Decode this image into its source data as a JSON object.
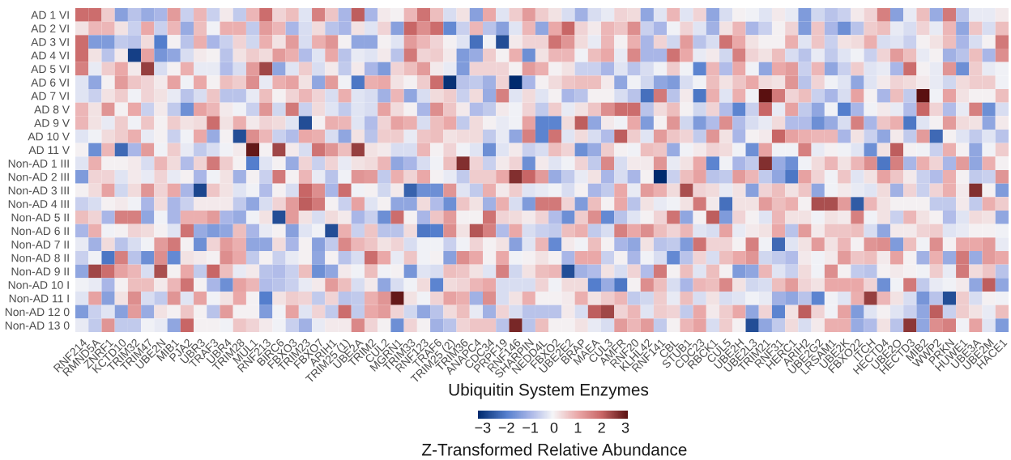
{
  "chart_data": {
    "type": "heatmap",
    "xlabel": "Ubiquitin System Enzymes",
    "clabel": "Z-Transformed Relative Abundance",
    "categories": [
      "RNF214",
      "RMND5A",
      "ZNRF1",
      "KCTD10",
      "TRIM32",
      "TRIM47",
      "UBE2N",
      "MIB1",
      "PJA2",
      "UBR3",
      "TRAF3",
      "UBR4",
      "TRIM28",
      "MUL1",
      "RNF213",
      "BIRC6",
      "FBXO3",
      "TRIM23",
      "FBXO7",
      "ARIH1",
      "TRIM25 (1)",
      "UBE2A",
      "TRIM2",
      "CUL2",
      "MGRN1",
      "TRIM33",
      "RNF123",
      "TRAF6",
      "TRIM25 (2)",
      "TRIM36",
      "ANAPC4",
      "CDC34",
      "PRPF19",
      "RNF146",
      "SHARPIN",
      "NEDD4L",
      "FBXO2",
      "UBE2E2",
      "BRAP",
      "MAEA",
      "CUL3",
      "AMFR",
      "RNF20",
      "KLHL42",
      "RNF141",
      "CBL",
      "STUB1",
      "CDC23",
      "RBCK1",
      "CUL5",
      "UBE2H",
      "UBE2L3",
      "TRIM21",
      "RNF31",
      "HERC1",
      "ARIH2",
      "UBE2G2",
      "LRSAM1",
      "UBE2K",
      "FBXO22",
      "ITCH",
      "HECTD4",
      "UBE2O",
      "HECTD3",
      "MIB2",
      "WWP2",
      "PRKN",
      "HUWE1",
      "UBE3A",
      "UBE2M",
      "HACE1"
    ],
    "y_categories": [
      "AD 1 VI",
      "AD 2 VI",
      "AD 3 VI",
      "AD 4 VI",
      "AD 5 VI",
      "AD 6 VI",
      "AD 7 VI",
      "AD 8 V",
      "AD 9 V",
      "AD 10 V",
      "AD 11 V",
      "Non-AD 1 III",
      "Non-AD 2 III",
      "Non-AD 3 III",
      "Non-AD 4 III",
      "Non-AD 5 II",
      "Non-AD 6 II",
      "Non-AD 7 II",
      "Non-AD 8 II",
      "Non-AD 9 II",
      "Non-AD 10 I",
      "Non-AD 11 I",
      "Non-AD 12 0",
      "Non-AD 13 0"
    ],
    "cells": [
      [
        1.9,
        1.9,
        0.5,
        -1.4,
        -0.8,
        -1.2,
        -1.0,
        1.2,
        -0.6,
        0.8,
        -0.6,
        0.1,
        -0.7,
        0.8,
        1.9,
        0.4,
        0.7,
        -0.3,
        1.6,
        0.6,
        -1.0,
        2.1,
        -1.0,
        0.1,
        0,
        0.8,
        1.8,
        0.7,
        -0.4,
        0.2,
        -1.4,
        1.0,
        -0.3,
        0.5,
        1.2,
        0.5,
        0.2,
        -0.4,
        -1.1,
        -0.4,
        -0.2,
        0.4,
        0.3,
        -1.3,
        -0.3,
        0.8,
        -0.3,
        0.4,
        -1.3,
        -0.4,
        0,
        -0.1,
        -0.3,
        0.1,
        -0.2,
        -1.5,
        -0.5,
        -0.8,
        -0.6,
        0.1,
        0.4,
        1.6,
        -1.4,
        -0.2,
        0.7,
        -1.2,
        1.7,
        -0.8,
        -0.2,
        -0.2,
        0.1
      ],
      [
        0.2,
        0.8,
        0.8,
        0.2,
        -0.6,
        1.0,
        -0.6,
        0.8,
        -1.2,
        0.7,
        -0.1,
        0.9,
        0.9,
        -0.7,
        1.2,
        0.8,
        -1.0,
        -0.4,
        0.3,
        -0.8,
        -1.0,
        0.2,
        -0.3,
        0.4,
        -1.4,
        2.0,
        1.4,
        1.9,
        -1.8,
        -0.6,
        0.8,
        -0.8,
        -1.4,
        -0.3,
        0.8,
        -1.3,
        1.0,
        2.0,
        0.4,
        0.1,
        0.8,
        0.6,
        1.4,
        -0.6,
        -1.0,
        -0.1,
        0.4,
        -0.3,
        -1.1,
        0.2,
        0.8,
        -1.0,
        -0.6,
        0,
        0.4,
        -1.5,
        0.6,
        -1.0,
        -1.7,
        -0.8,
        0.5,
        0.7,
        -0.2,
        -0.4,
        0.4,
        -0.2,
        0.8,
        -1.3,
        0.6,
        -0.4,
        0.7
      ],
      [
        1.9,
        -1.5,
        -1.5,
        -0.7,
        -0.8,
        0.3,
        -2.0,
        0,
        -0.8,
        0.9,
        -1.0,
        -0.6,
        0.4,
        -0.5,
        0.9,
        0.2,
        1.2,
        -0.4,
        0.9,
        1.3,
        0,
        -1.3,
        -1.3,
        0,
        -0.3,
        1.2,
        0.8,
        0.4,
        0,
        -0.3,
        -2.2,
        -0.1,
        -2.7,
        0.1,
        0.4,
        0.4,
        1.8,
        1.3,
        0.3,
        -0.2,
        0.8,
        0,
        0.9,
        -1.0,
        0.4,
        -0.5,
        1.2,
        -0.8,
        -0.4,
        1.8,
        1.0,
        0.2,
        0,
        0,
        0.9,
        -0.3,
        0.6,
        -0.6,
        0.2,
        0.3,
        0.9,
        -0.4,
        -0.3,
        -0.6,
        0,
        0.2,
        0.7,
        -1.0,
        -0.4,
        0,
        1.7
      ],
      [
        1.9,
        0.2,
        -0.8,
        0.1,
        -2.9,
        1.1,
        -1.6,
        -1.3,
        -0.4,
        0.1,
        0,
        -0.8,
        0.2,
        0.5,
        0.3,
        1.2,
        0.9,
        -0.9,
        -0.3,
        1.0,
        -0.8,
        -0.2,
        -0.3,
        0.1,
        -0.8,
        1.7,
        0.4,
        0.5,
        0.1,
        -1.5,
        -1.2,
        0.5,
        0,
        0.9,
        -1.7,
        0.2,
        0.8,
        0.8,
        -0.1,
        0.7,
        1.0,
        -0.2,
        1.5,
        -1.0,
        -1.0,
        1.8,
        1.0,
        -0.2,
        0.1,
        -0.5,
        1.6,
        0.4,
        0.2,
        0.7,
        -0.4,
        -0.8,
        -0.2,
        -0.7,
        -0.3,
        -0.1,
        -0.6,
        0.4,
        1.2,
        0.7,
        -0.2,
        0,
        -1.1,
        -0.8,
        0.7,
        -1.0,
        1.4
      ],
      [
        1.6,
        -0.2,
        0.5,
        1.0,
        0.1,
        2.5,
        -0.4,
        0,
        0.9,
        -0.2,
        -0.2,
        -0.9,
        -0.4,
        1.2,
        2.4,
        -1.3,
        -0.3,
        0.5,
        -0.4,
        0.1,
        -0.7,
        0.1,
        -1.0,
        -1.5,
        0.4,
        0.7,
        1.2,
        0.1,
        -0.2,
        -1.5,
        0.4,
        0.4,
        0.4,
        0,
        1.2,
        0.9,
        0,
        0.2,
        -0.6,
        -0.6,
        -1.0,
        -0.3,
        -0.8,
        -0.4,
        -0.1,
        0.5,
        -0.1,
        -1.9,
        0.8,
        -0.9,
        1.0,
        -0.1,
        -1.3,
        1.0,
        1.2,
        -0.6,
        0.8,
        -1.3,
        -0.6,
        0.5,
        -0.3,
        -0.2,
        -1.0,
        1.9,
        0,
        -0.2,
        1.3,
        -1.7,
        0.5,
        -0.2,
        -0.1
      ],
      [
        -0.3,
        -1.3,
        0,
        1.2,
        0.6,
        0.4,
        0.1,
        1.1,
        -0.1,
        1.0,
        0,
        0.7,
        0.5,
        1.4,
        -0.2,
        0.9,
        1.1,
        0.2,
        -1.3,
        1.2,
        -0.1,
        -2.1,
        0.9,
        1.0,
        0.2,
        0,
        0.5,
        1.9,
        -3.1,
        -0.8,
        -0.7,
        -1.1,
        0.4,
        -3.2,
        -1.0,
        0,
        0.3,
        0.6,
        0.7,
        0.7,
        0.1,
        -1.3,
        -0.1,
        -0.5,
        -1.3,
        -1.5,
        -0.4,
        -0.1,
        0.7,
        0.2,
        0.6,
        1.0,
        0.3,
        0.2,
        1.3,
        -0.8,
        0.4,
        -0.1,
        -0.3,
        -1.3,
        -0.3,
        0.1,
        0.4,
        0.3,
        0.1,
        -0.2,
        -0.5,
        0.3,
        0.5,
        0.5,
        -0.1
      ],
      [
        -0.3,
        -0.6,
        0.2,
        0.5,
        -0.1,
        0.4,
        0.2,
        -0.2,
        -0.8,
        -0.4,
        0.6,
        -0.8,
        -0.8,
        -0.2,
        0.7,
        0,
        0.4,
        0.8,
        0.4,
        -0.4,
        0.9,
        -0.3,
        -0.4,
        -1.1,
        0.8,
        -1.3,
        -0.4,
        0.3,
        0.5,
        -0.6,
        0.3,
        -1.2,
        1.6,
        -0.3,
        0.3,
        -0.3,
        0,
        -1.0,
        -0.8,
        0,
        0,
        -0.4,
        -0.8,
        -2.2,
        1.7,
        -0.8,
        0.1,
        -2.1,
        0.9,
        -0.3,
        0.9,
        -0.1,
        3.1,
        1.7,
        0.4,
        0.7,
        -0.6,
        -1.0,
        -0.4,
        1.1,
        0,
        -1.0,
        0.7,
        -0.7,
        3.1,
        -0.1,
        1.1,
        0.2,
        0,
        0,
        0.7
      ],
      [
        0.8,
        0.2,
        1.3,
        0,
        1.0,
        -0.6,
        0.1,
        -0.7,
        -1.7,
        1.1,
        0.8,
        0.1,
        -0.1,
        -0.6,
        1.3,
        -0.5,
        1.7,
        -0.6,
        0.3,
        -0.3,
        -0.7,
        -0.3,
        -0.4,
        1.1,
        0.3,
        0,
        -1.0,
        1.4,
        0.6,
        0.1,
        -0.9,
        -0.7,
        0.1,
        -0.1,
        0.4,
        -0.7,
        0.5,
        -0.2,
        0.2,
        0.6,
        1.4,
        1.9,
        1.9,
        -0.8,
        0.3,
        0.7,
        0,
        -0.5,
        0.4,
        -0.9,
        -1.9,
        -0.6,
        2.0,
        -0.2,
        1.1,
        -0.7,
        -1.3,
        -0.1,
        -2.0,
        -1.0,
        -0.1,
        0.1,
        -0.2,
        -0.9,
        2.0,
        0.4,
        -0.9,
        -0.2,
        1.6,
        -1.7,
        -0.4
      ],
      [
        0.8,
        0.2,
        -0.2,
        0.5,
        -0.1,
        0.6,
        0,
        0.5,
        0.2,
        0.3,
        1.9,
        0.2,
        0.9,
        0.1,
        0.4,
        0.3,
        -0.3,
        -2.7,
        0,
        0.9,
        0.8,
        -0.3,
        -0.9,
        0.4,
        1.1,
        0.9,
        -0.4,
        0.7,
        1.0,
        -0.7,
        0.3,
        0,
        -0.2,
        -0.1,
        1.1,
        -1.9,
        -1.9,
        0.3,
        2.1,
        -1.3,
        0.1,
        -0.1,
        1.0,
        -1.5,
        0,
        1.3,
        -0.5,
        -1.5,
        -0.9,
        1.4,
        -0.9,
        -0.4,
        -0.2,
        0.3,
        -0.9,
        -0.9,
        -1.7,
        -1.2,
        -0.4,
        1.6,
        -1.0,
        0.6,
        0.9,
        -2.1,
        -0.3,
        0,
        1.2,
        0.3,
        0.2,
        -1.3,
        0.1
      ],
      [
        -0.3,
        -0.1,
        0.3,
        0.5,
        0.9,
        -0.2,
        0,
        -0.6,
        -0.1,
        1.0,
        -1.2,
        0,
        -2.7,
        1.4,
        0.8,
        -0.6,
        -0.9,
        1.0,
        0.9,
        -0.4,
        -1.3,
        0.2,
        -0.8,
        0.5,
        0.5,
        -0.2,
        0.6,
        0.7,
        0.2,
        0.3,
        0.3,
        -0.7,
        -0.2,
        -1.3,
        1.6,
        -1.9,
        1.8,
        -0.3,
        0.3,
        -0.4,
        -0.9,
        2.1,
        0.5,
        -0.3,
        1.2,
        0.6,
        0.4,
        -0.7,
        1.3,
        0.2,
        -1.0,
        0,
        0.1,
        2.0,
        1.1,
        0.9,
        0.8,
        0.8,
        -1.0,
        0.2,
        -0.6,
        -1.3,
        0.1,
        -0.7,
        1.2,
        -2.3,
        0,
        -0.3,
        -0.7,
        -0.3,
        -0.8
      ],
      [
        0,
        -1.7,
        0.8,
        -2.3,
        -1.0,
        1.2,
        -0.1,
        0.5,
        -0.2,
        -0.7,
        -0.4,
        -0.1,
        0.1,
        3.0,
        0,
        2.4,
        0.1,
        -0.4,
        1.8,
        1.3,
        0.7,
        2.5,
        0.2,
        0.1,
        -0.4,
        -0.4,
        0.8,
        0,
        0.4,
        -0.1,
        -0.3,
        -1.7,
        -0.3,
        0.1,
        -0.6,
        -0.4,
        0.7,
        0.4,
        -1.7,
        -1.2,
        0.5,
        0,
        -0.1,
        0.7,
        0.6,
        -1.2,
        -0.1,
        0.1,
        0.4,
        0.3,
        -0.1,
        -1.7,
        1.1,
        -0.1,
        -0.1,
        1.6,
        -0.2,
        0,
        -0.1,
        -0.3,
        -1.7,
        0.2,
        2.1,
        0,
        -0.1,
        -0.6,
        0.9,
        0,
        -1.3,
        -0.1,
        0.5
      ],
      [
        -0.3,
        0.9,
        0,
        0,
        0.1,
        -0.4,
        0.8,
        0.3,
        -0.9,
        0.4,
        1.7,
        0.5,
        0,
        -2.0,
        -0.3,
        0,
        -1.2,
        0.4,
        -0.6,
        0.4,
        -0.2,
        0.2,
        0.3,
        0.8,
        -1.3,
        -1.0,
        -0.4,
        -0.1,
        0.7,
        2.7,
        0.4,
        -0.6,
        0.1,
        0.4,
        -1.7,
        0.1,
        -0.3,
        -0.1,
        0.4,
        -0.7,
        1.5,
        -0.4,
        0.1,
        0.1,
        1.3,
        -0.2,
        0.2,
        1.0,
        -1.9,
        -0.1,
        -1.0,
        -0.7,
        2.7,
        -1.2,
        -1.7,
        -0.1,
        0.3,
        0.8,
        0.2,
        0.8,
        1.4,
        -2.1,
        1.6,
        -1.0,
        0.9,
        0.4,
        -1.0,
        1.2,
        -1.3,
        0.9,
        0
      ],
      [
        -1.5,
        0.4,
        0.4,
        -0.3,
        0.1,
        -0.2,
        0.4,
        -0.2,
        0,
        -1.0,
        -0.1,
        0.2,
        -1.1,
        0,
        -0.6,
        1.7,
        0,
        0.8,
        -0.2,
        -0.8,
        -0.1,
        1.3,
        1.2,
        -0.7,
        0.9,
        0.4,
        1.0,
        0,
        -0.2,
        -0.7,
        0.5,
        0.5,
        1.0,
        2.7,
        2.0,
        1.2,
        -1.2,
        -0.7,
        -0.2,
        0.2,
        -1.0,
        -0.4,
        -1.0,
        0,
        -3.2,
        -0.6,
        0.7,
        1.1,
        -0.8,
        -0.7,
        1.2,
        0.8,
        -0.7,
        -1.3,
        -2.1,
        1.1,
        0.4,
        -0.1,
        0.6,
        -0.3,
        0.2,
        1.1,
        0.6,
        0.1,
        -0.6,
        -0.9,
        0.9,
        0,
        -0.7,
        -0.6,
        1.3
      ],
      [
        0,
        0.3,
        1.1,
        -0.5,
        0.3,
        1.3,
        0.4,
        1.0,
        -1.0,
        -2.8,
        0.6,
        0.2,
        -0.3,
        -0.1,
        -0.9,
        0,
        -0.4,
        2.0,
        1.4,
        -1.0,
        1.9,
        -0.1,
        0,
        -0.5,
        0.1,
        -2.4,
        -1.7,
        -1.7,
        1.3,
        -0.3,
        -0.7,
        0.9,
        0.1,
        0.5,
        -0.3,
        -0.2,
        -0.1,
        -0.4,
        0,
        -1.0,
        -0.7,
        1.0,
        -0.2,
        1.2,
        0.9,
        0.3,
        2.3,
        0.4,
        0.3,
        -0.2,
        0.2,
        -1.4,
        0.4,
        0.7,
        0.2,
        0.6,
        -1.3,
        -0.1,
        0.1,
        -0.2,
        -0.3,
        0.3,
        -1.1,
        0.4,
        -0.6,
        0.4,
        0.9,
        0.1,
        2.7,
        0,
        -1.5
      ],
      [
        -0.6,
        -0.4,
        0,
        0.1,
        -0.1,
        -1.0,
        0.3,
        -1.0,
        -0.6,
        0.1,
        0.1,
        0.1,
        -0.7,
        -1.3,
        -0.4,
        0.4,
        1.2,
        2.1,
        1.7,
        0,
        -0.6,
        1.1,
        -0.3,
        0,
        -1.3,
        -1.3,
        0.3,
        -0.9,
        -1.7,
        0.6,
        0.2,
        -1.1,
        0.9,
        -0.4,
        -1.5,
        1.7,
        1.7,
        0.4,
        -1.5,
        0.7,
        0,
        1.0,
        -0.8,
        0.2,
        -0.2,
        -0.1,
        0.2,
        1.7,
        0.1,
        -2.2,
        0.2,
        0.2,
        1.2,
        0.7,
        0.9,
        0,
        2.3,
        2.3,
        1.2,
        -2.5,
        0.8,
        0.2,
        0,
        0,
        0,
        -0.7,
        -0.7,
        0.1,
        -0.7,
        0.9,
        0.5
      ],
      [
        0.7,
        0.4,
        -1.0,
        1.6,
        1.6,
        -1.3,
        -0.1,
        -1.0,
        0.9,
        0.9,
        1.2,
        -1.0,
        -1.2,
        -0.1,
        0.2,
        -2.7,
        1.2,
        0.2,
        -0.4,
        0.3,
        0.1,
        -1.0,
        -0.6,
        -1.7,
        1.9,
        0,
        -1.0,
        0.6,
        1.2,
        0,
        0,
        1.8,
        0.4,
        0.3,
        0.1,
        0.4,
        -0.9,
        -1.7,
        0.5,
        1.4,
        -1.8,
        -0.8,
        -0.3,
        0,
        0.4,
        1.8,
        -1.3,
        0,
        2.1,
        -1.5,
        0.4,
        0,
        -0.3,
        0.8,
        0.2,
        0.2,
        -0.1,
        0.2,
        0.1,
        1.6,
        -0.1,
        0.2,
        -0.6,
        0.8,
        0.2,
        0,
        -0.9,
        -0.3,
        0.3,
        0.2,
        -1.3
      ],
      [
        -1.0,
        0.9,
        -0.1,
        0,
        0.4,
        0.3,
        0,
        -0.3,
        1.8,
        -1.2,
        -1.5,
        -1.3,
        0.7,
        -1.0,
        -0.2,
        0,
        -1.4,
        -0.3,
        -0.1,
        -2.7,
        0.9,
        -0.6,
        0.6,
        -0.8,
        -0.8,
        0.3,
        -2.1,
        -2.0,
        1.4,
        0.2,
        2.2,
        1.6,
        -0.9,
        1.0,
        -0.4,
        -0.6,
        -0.7,
        0.7,
        0.9,
        -0.7,
        -0.4,
        1.6,
        1.0,
        1.4,
        0.7,
        0.4,
        0.8,
        -0.3,
        -0.4,
        1.1,
        -0.2,
        0.1,
        0.2,
        1.0,
        -0.8,
        1.2,
        0.1,
        0.6,
        0.6,
        0.7,
        -0.4,
        -1.3,
        0.1,
        0.1,
        0.4,
        0.5,
        -0.3,
        -0.2,
        0,
        0,
        -0.1
      ],
      [
        -0.2,
        -1.1,
        0.3,
        -0.8,
        -0.4,
        -0.1,
        1.2,
        1.7,
        0,
        -1.7,
        0.4,
        1.2,
        0.9,
        -1.3,
        -1.3,
        0.3,
        -1.0,
        0,
        -1.4,
        -0.7,
        1.5,
        0.8,
        0.6,
        0.2,
        0.4,
        -0.4,
        -0.1,
        -0.1,
        -0.6,
        -0.1,
        0.4,
        0,
        0.2,
        -1.4,
        -0.3,
        0.8,
        -1.8,
        0.1,
        -0.1,
        0.7,
        0,
        -1.0,
        -1.3,
        0.2,
        -0.8,
        -0.7,
        -1.5,
        1.8,
        0.4,
        0.4,
        0,
        1.6,
        -0.1,
        -2.3,
        -0.3,
        0.2,
        1.2,
        0.2,
        0.8,
        0,
        1.3,
        1.4,
        -1.5,
        0.7,
        -0.1,
        1.4,
        0,
        1.0,
        1.0,
        1.2,
        -0.2
      ],
      [
        -0.6,
        -0.1,
        -2.1,
        1.6,
        -0.8,
        -1.7,
        1.4,
        -1.8,
        0.2,
        0.1,
        0,
        1.4,
        1.0,
        -0.7,
        0,
        -0.6,
        -0.2,
        0,
        -1.3,
        0,
        -0.8,
        -0.4,
        1.9,
        1.0,
        -0.2,
        0.6,
        -0.1,
        0,
        -1.4,
        1.4,
        1.0,
        0,
        1.0,
        -0.1,
        0,
        0.2,
        0,
        -1.0,
        1.0,
        1.0,
        -0.6,
        0,
        -1.0,
        -0.1,
        -0.4,
        -1.8,
        -0.8,
        0.4,
        -0.4,
        0.7,
        1.0,
        1.3,
        -0.5,
        -0.7,
        -0.9,
        0.1,
        -0.1,
        0.1,
        1.2,
        0.6,
        0.7,
        0.1,
        1.1,
        0,
        -1.1,
        0.9,
        -1.2,
        1.7,
        -1.2,
        1.2,
        1.0
      ],
      [
        -1.3,
        2.4,
        1.9,
        1.1,
        0.8,
        -0.4,
        2.3,
        0,
        1.0,
        -0.7,
        2.0,
        0.7,
        -0.2,
        0.1,
        -0.8,
        -0.9,
        -0.6,
        0.7,
        -1.7,
        -1.3,
        0.1,
        -0.1,
        0.7,
        -0.1,
        0,
        -1.6,
        -0.3,
        -0.4,
        0.7,
        0.6,
        0.2,
        -0.3,
        1.6,
        -0.5,
        0.2,
        0.7,
        0.8,
        -2.7,
        -1.1,
        -0.9,
        0.2,
        -0.4,
        0.4,
        -0.9,
        1.7,
        0,
        0.7,
        -0.3,
        0.7,
        0,
        -1.5,
        -1.3,
        0.8,
        -0.3,
        -0.6,
        0.3,
        -0.1,
        1.4,
        0,
        -0.7,
        -0.8,
        0,
        0.1,
        0,
        -0.1,
        0.5,
        -0.2,
        1.7,
        0.3,
        0.6,
        -0.8
      ],
      [
        -0.1,
        -0.2,
        -1.0,
        0,
        0.7,
        0.7,
        0.1,
        0.8,
        1.8,
        0,
        -1.0,
        -1.7,
        1.1,
        0.8,
        -0.9,
        -0.8,
        -0.6,
        -0.2,
        0.1,
        1.2,
        0.7,
        -0.4,
        0.1,
        -1.3,
        -0.4,
        -0.1,
        0.3,
        -1.9,
        0.3,
        0.4,
        0.8,
        1.0,
        -0.4,
        -0.4,
        -0.4,
        0.4,
        -0.1,
        0.3,
        0.3,
        -2.0,
        -1.2,
        -2.1,
        0,
        1.4,
        0.7,
        -0.4,
        -1.0,
        0.8,
        0.7,
        1.5,
        0.2,
        -0.5,
        -0.4,
        0.7,
        1.2,
        0.4,
        0.2,
        1.0,
        1.0,
        1.0,
        0.4,
        -1.7,
        -0.1,
        1.7,
        -0.7,
        -0.2,
        -0.1,
        0.1,
        -1.3,
        2.1,
        -1.3
      ],
      [
        -0.3,
        1.1,
        -1.4,
        0.2,
        1.4,
        -0.4,
        -0.7,
        1.3,
        -0.3,
        1.1,
        -0.1,
        0.2,
        1.0,
        0,
        -2.0,
        0.2,
        0.5,
        0.4,
        -0.7,
        0.4,
        -0.8,
        -0.7,
        0.9,
        1.3,
        3.0,
        0.2,
        -0.1,
        0.4,
        1.1,
        0.9,
        -1.1,
        1.4,
        -0.4,
        0.2,
        0.9,
        0,
        0,
        0.1,
        0.9,
        0.2,
        0.5,
        0.8,
        -0.7,
        -0.5,
        0.5,
        -0.2,
        0.7,
        -0.4,
        0.2,
        -0.4,
        -0.3,
        -0.1,
        -0.2,
        -1.1,
        -1.3,
        -0.8,
        -1.9,
        -0.1,
        -0.3,
        0.9,
        2.5,
        0.8,
        0.2,
        -0.4,
        -1.6,
        -0.8,
        -2.7,
        0.5,
        -0.4,
        0,
        -0.1
      ],
      [
        -1.5,
        -0.6,
        -0.3,
        -1.4,
        1.2,
        -1.2,
        0.2,
        0,
        0.6,
        0,
        -0.8,
        1.2,
        0,
        0,
        -1.5,
        -0.1,
        1.1,
        -0.3,
        0.4,
        -0.7,
        1.9,
        -0.7,
        1.0,
        1.2,
        0.4,
        -0.5,
        -1.3,
        -0.8,
        0.3,
        0.7,
        -0.2,
        -1.1,
        0.4,
        -0.4,
        -0.8,
        -0.8,
        -0.8,
        0.1,
        -0.4,
        2.1,
        2.4,
        0.4,
        0.8,
        -0.3,
        0.5,
        0.4,
        -0.7,
        1.0,
        0.1,
        0.5,
        1.0,
        -1.3,
        0.4,
        -1.9,
        0.2,
        2.1,
        0.4,
        -0.1,
        1.1,
        -1.5,
        -0.3,
        0,
        -0.3,
        -0.6,
        -1.3,
        2.1,
        -0.6,
        0.5,
        0.2,
        -0.2,
        0.7
      ],
      [
        -0.2,
        -0.7,
        1.3,
        -0.7,
        -0.7,
        -0.1,
        -0.2,
        -1.3,
        2.0,
        0,
        0,
        -0.1,
        0.6,
        0.4,
        0.1,
        -0.1,
        -0.6,
        -1.1,
        -0.2,
        0.1,
        0.1,
        1.5,
        0.4,
        0,
        -1.7,
        0.4,
        0,
        -1.1,
        -0.8,
        0.4,
        0.6,
        0.6,
        -0.8,
        2.8,
        -0.8,
        0.7,
        0,
        0,
        0.2,
        -0.2,
        -0.4,
        1.2,
        0.8,
        1.2,
        -0.7,
        0,
        0.8,
        1.1,
        -0.4,
        0.5,
        0,
        -2.7,
        -1.3,
        -0.7,
        0.3,
        -0.4,
        0.1,
        0.9,
        0.9,
        -1.2,
        -0.9,
        0.2,
        -0.8,
        2.6,
        -1.3,
        1.4,
        1.6,
        -0.1,
        1.1,
        -0.3,
        -1.5
      ]
    ],
    "clim": [
      -3.2,
      3.1
    ],
    "cticks": [
      {
        "value": -3,
        "label": "−3"
      },
      {
        "value": -2,
        "label": "−2"
      },
      {
        "value": -1,
        "label": "−1"
      },
      0,
      1,
      2,
      3
    ]
  }
}
